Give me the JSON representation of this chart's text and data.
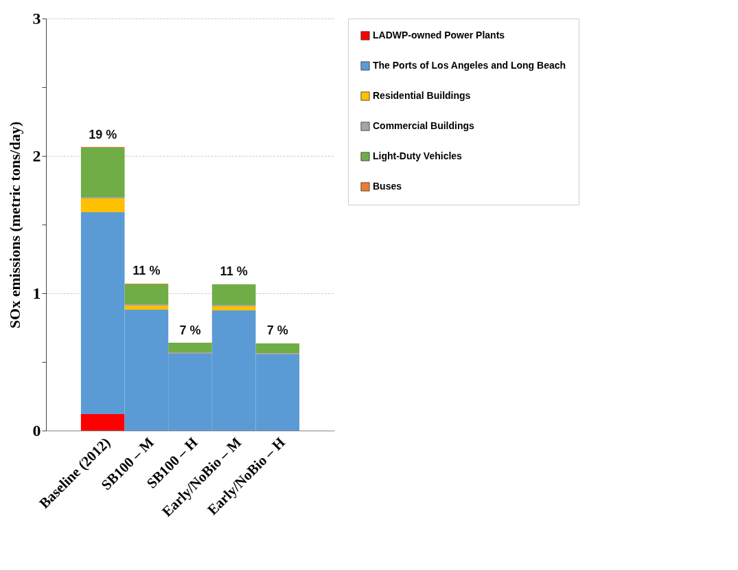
{
  "chart_data": {
    "type": "bar",
    "stacked": true,
    "ylabel": "SOx  emissions (metric tons/day)",
    "categories": [
      "Baseline (2012)",
      "SB100 – M",
      "SB100 – H",
      "Early/NoBio – M",
      "Early/NoBio – H"
    ],
    "series": [
      {
        "name": "LADWP-owned Power Plants",
        "color": "#ff0000",
        "values": [
          0.12,
          0,
          0,
          0,
          0
        ]
      },
      {
        "name": "The Ports of Los Angeles and Long Beach",
        "color": "#5b9bd5",
        "values": [
          1.47,
          0.88,
          0.56,
          0.875,
          0.555
        ]
      },
      {
        "name": "Residential Buildings",
        "color": "#ffc000",
        "values": [
          0.1,
          0.03,
          0,
          0.03,
          0
        ]
      },
      {
        "name": "Commercial Buildings",
        "color": "#a5a5a5",
        "values": [
          0.01,
          0.01,
          0.01,
          0.01,
          0.01
        ]
      },
      {
        "name": "Light-Duty Vehicles",
        "color": "#70ad47",
        "values": [
          0.36,
          0.145,
          0.07,
          0.15,
          0.07
        ]
      },
      {
        "name": "Buses",
        "color": "#ed7d31",
        "values": [
          0.005,
          0.005,
          0.0,
          0.0,
          0.0
        ]
      }
    ],
    "ylim": [
      0,
      3
    ],
    "yticks": [
      0,
      {
        "value": 0.5,
        "label": null
      },
      1,
      {
        "value": 1.5,
        "label": null
      },
      2,
      {
        "value": 2.5,
        "label": null
      },
      3
    ],
    "grid": "y",
    "legend": "right",
    "annotations": [
      {
        "text": "19 %",
        "x": "Baseline (2012)",
        "y": 2.06
      },
      {
        "text": "11 %",
        "x": "SB100 – M",
        "y": 1.07
      },
      {
        "text": "7 %",
        "x": "SB100 – H",
        "y": 0.635
      },
      {
        "text": "11 %",
        "x": "Early/NoBio – M",
        "y": 1.065
      },
      {
        "text": "7 %",
        "x": "Early/NoBio – H",
        "y": 0.635
      }
    ]
  }
}
